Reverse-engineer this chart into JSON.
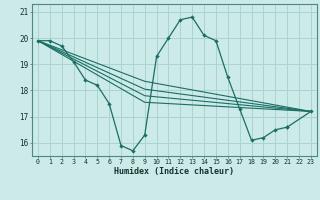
{
  "title": "",
  "xlabel": "Humidex (Indice chaleur)",
  "bg_color": "#cceae7",
  "grid_color": "#aad4d0",
  "line_color": "#1a6e64",
  "xlim": [
    -0.5,
    23.5
  ],
  "ylim": [
    15.5,
    21.3
  ],
  "yticks": [
    16,
    17,
    18,
    19,
    20,
    21
  ],
  "xticks": [
    0,
    1,
    2,
    3,
    4,
    5,
    6,
    7,
    8,
    9,
    10,
    11,
    12,
    13,
    14,
    15,
    16,
    17,
    18,
    19,
    20,
    21,
    22,
    23
  ],
  "main_line": {
    "x": [
      0,
      1,
      2,
      3,
      4,
      5,
      6,
      7,
      8,
      9,
      10,
      11,
      12,
      13,
      14,
      15,
      16,
      17,
      18,
      19,
      20,
      21,
      23
    ],
    "y": [
      19.9,
      19.9,
      19.7,
      19.1,
      18.4,
      18.2,
      17.5,
      15.9,
      15.7,
      16.3,
      19.3,
      20.0,
      20.7,
      20.8,
      20.1,
      19.9,
      18.5,
      17.3,
      16.1,
      16.2,
      16.5,
      16.6,
      17.2
    ]
  },
  "straight_lines": [
    {
      "x": [
        0,
        23
      ],
      "y": [
        19.9,
        17.2
      ]
    },
    {
      "x": [
        0,
        23
      ],
      "y": [
        19.9,
        17.2
      ]
    },
    {
      "x": [
        0,
        23
      ],
      "y": [
        19.9,
        17.2
      ]
    },
    {
      "x": [
        0,
        23
      ],
      "y": [
        19.9,
        17.2
      ]
    }
  ],
  "fanlines": [
    {
      "x": [
        0,
        9,
        23
      ],
      "y": [
        19.9,
        18.35,
        17.2
      ]
    },
    {
      "x": [
        0,
        9,
        23
      ],
      "y": [
        19.9,
        18.05,
        17.2
      ]
    },
    {
      "x": [
        0,
        9,
        23
      ],
      "y": [
        19.9,
        17.8,
        17.2
      ]
    },
    {
      "x": [
        0,
        9,
        23
      ],
      "y": [
        19.9,
        17.55,
        17.2
      ]
    }
  ]
}
